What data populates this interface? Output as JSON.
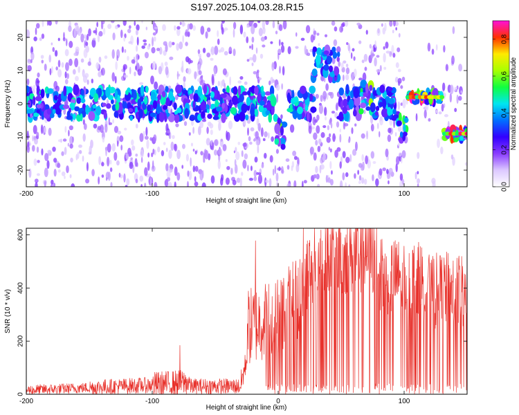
{
  "title": "S197.2025.104.03.28.R15",
  "chart_data": [
    {
      "type": "heatmap",
      "xlabel": "Height of straight line (km)",
      "ylabel": "Frequency (Hz)",
      "xlim": [
        -200,
        150
      ],
      "ylim": [
        -25,
        25
      ],
      "xticks": [
        -200,
        -100,
        0,
        100
      ],
      "yticks": [
        -20,
        -10,
        0,
        10,
        20
      ],
      "grid": false,
      "colorbar": {
        "label": "Normalized spectral amplitude",
        "range": [
          0.0,
          0.9
        ],
        "ticks": [
          "0.0",
          "0.2",
          "0.4",
          "0.6",
          "0.8"
        ],
        "colormap_stops": [
          {
            "v": 0.0,
            "color": "#ffffff"
          },
          {
            "v": 0.09,
            "color": "#dcc8ff"
          },
          {
            "v": 0.18,
            "color": "#8a3cff"
          },
          {
            "v": 0.27,
            "color": "#3200ff"
          },
          {
            "v": 0.36,
            "color": "#0070ff"
          },
          {
            "v": 0.45,
            "color": "#00e6f0"
          },
          {
            "v": 0.54,
            "color": "#10ff40"
          },
          {
            "v": 0.63,
            "color": "#a8ff00"
          },
          {
            "v": 0.72,
            "color": "#ffea00"
          },
          {
            "v": 0.81,
            "color": "#ff3000"
          },
          {
            "v": 0.9,
            "color": "#ff10d8"
          }
        ]
      },
      "ridge": [
        {
          "x": [
            -200,
            -2
          ],
          "f": 0,
          "peak": 0.35
        },
        {
          "x": [
            -2,
            5
          ],
          "f": -9,
          "peak": 0.5
        },
        {
          "x": [
            8,
            28
          ],
          "f": 0,
          "peak": 0.35
        },
        {
          "x": [
            28,
            48
          ],
          "f": 12,
          "peak": 0.3
        },
        {
          "x": [
            48,
            65
          ],
          "f": 0,
          "peak": 0.3
        },
        {
          "x": [
            65,
            75
          ],
          "f": 2,
          "peak": 0.5
        },
        {
          "x": [
            75,
            95
          ],
          "f": 0,
          "peak": 0.3
        },
        {
          "x": [
            95,
            102
          ],
          "f": -8,
          "peak": 0.55
        },
        {
          "x": [
            103,
            130
          ],
          "f": 2,
          "peak": 0.85
        },
        {
          "x": [
            132,
            150
          ],
          "f": -9,
          "peak": 0.8
        }
      ]
    },
    {
      "type": "line",
      "xlabel": "Height of straight line (km)",
      "ylabel": "SNR (10 * v/v)",
      "xlim": [
        -200,
        150
      ],
      "ylim": [
        0,
        625
      ],
      "xticks": [
        -200,
        -100,
        0,
        100
      ],
      "yticks": [
        0,
        200,
        400,
        600
      ],
      "grid": false,
      "series": [
        {
          "color": "#e8302a",
          "segments": [
            {
              "x": [
                -200,
                -150
              ],
              "level": [
                15,
                25
              ],
              "jitter": 20
            },
            {
              "x": [
                -150,
                -100
              ],
              "level": [
                25,
                35
              ],
              "jitter": 30
            },
            {
              "x": [
                -100,
                -70
              ],
              "level": [
                35,
                45
              ],
              "jitter": 50
            },
            {
              "x": [
                -70,
                -30
              ],
              "level": [
                30,
                30
              ],
              "jitter": 30
            },
            {
              "x": [
                -30,
                -25
              ],
              "level": [
                30,
                130
              ],
              "jitter": 50
            },
            {
              "x": [
                -25,
                0
              ],
              "level": [
                250,
                300
              ],
              "jitter": 150
            },
            {
              "x": [
                0,
                20
              ],
              "level": [
                300,
                380
              ],
              "jitter": 160
            },
            {
              "x": [
                20,
                40
              ],
              "level": [
                450,
                550
              ],
              "jitter": 150
            },
            {
              "x": [
                40,
                80
              ],
              "level": [
                520,
                520
              ],
              "jitter": 150
            },
            {
              "x": [
                80,
                120
              ],
              "level": [
                450,
                420
              ],
              "jitter": 150
            },
            {
              "x": [
                120,
                150
              ],
              "level": [
                380,
                400
              ],
              "jitter": 150
            }
          ],
          "peaks": [
            {
              "x": 20,
              "y": 625
            },
            {
              "x": 46,
              "y": 612
            },
            {
              "x": -18,
              "y": 578
            },
            {
              "x": -78,
              "y": 184
            }
          ]
        }
      ]
    }
  ],
  "layout_name": "two-panel-figure"
}
